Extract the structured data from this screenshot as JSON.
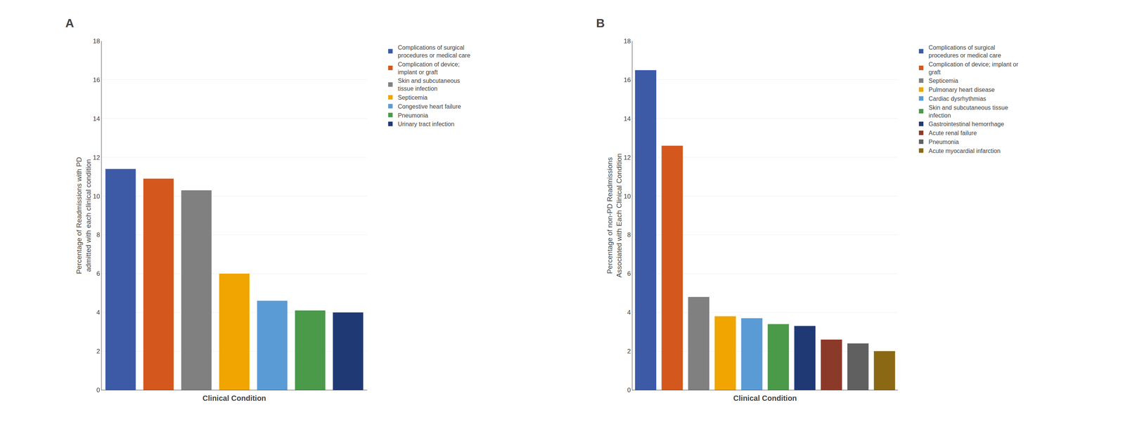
{
  "chart_data": [
    {
      "type": "bar",
      "title": "A",
      "categories": [
        "Complications of surgical\nprocedures or medical care",
        "Complication of device;\nimplant or graft",
        "Skin and subcutaneous\ntissue infection",
        "Septicemia",
        "Congestive heart failure",
        "Pneumonia",
        "Urinary tract infection"
      ],
      "values": [
        11.4,
        10.9,
        10.3,
        6.0,
        4.6,
        4.1,
        4.0
      ],
      "colors": [
        "#3c5aa6",
        "#d4571e",
        "#808080",
        "#f0a500",
        "#5b9bd5",
        "#4a9a4a",
        "#1f3975"
      ],
      "x_label": "Clinical Condition",
      "y_label": "Percentage of Readmissions with PD\nadmitted with each clinical condition",
      "ylim": [
        0,
        18
      ],
      "yticks": [
        0,
        2,
        4,
        6,
        8,
        10,
        12,
        14,
        16,
        18
      ],
      "grid": true,
      "legend": "right",
      "tick_labels": "y"
    },
    {
      "type": "bar",
      "title": "B",
      "categories": [
        "Complications of surgical\nprocedures or medical care",
        "Complication of device; implant or\ngraft",
        "Septicemia",
        "Pulmonary heart disease",
        "Cardiac dysrhythmias",
        "Skin and subcutaneous tissue\ninfection",
        "Gastrointestinal hemorrhage",
        "Acute renal failure",
        "Pneumonia",
        "Acute myocardial infarction"
      ],
      "values": [
        16.5,
        12.6,
        4.8,
        3.8,
        3.7,
        3.4,
        3.3,
        2.6,
        2.4,
        2.0
      ],
      "colors": [
        "#3c5aa6",
        "#d4571e",
        "#808080",
        "#f0a500",
        "#5b9bd5",
        "#4a9a4a",
        "#1f3975",
        "#8b3a2a",
        "#606060",
        "#8b6914"
      ],
      "x_label": "Clinical Condition",
      "y_label": "Percentage of non-PD Readmissions\nAssociated with Each Clinical Condition",
      "ylim": [
        0,
        18
      ],
      "yticks": [
        0,
        2,
        4,
        6,
        8,
        10,
        12,
        14,
        16,
        18
      ],
      "grid": true,
      "legend": "right",
      "tick_labels": "y"
    }
  ]
}
